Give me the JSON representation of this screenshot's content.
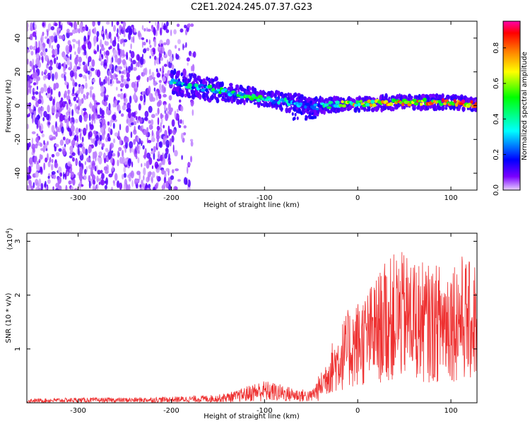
{
  "title": "C2E1.2024.245.07.37.G23",
  "chart_data": [
    {
      "type": "heatmap",
      "xlabel": "Height of straight line (km)",
      "ylabel": "Frequency (Hz)",
      "xlim": [
        -355,
        128
      ],
      "ylim": [
        -50,
        50
      ],
      "xticks": [
        -300,
        -200,
        -100,
        0,
        100
      ],
      "yticks": [
        -40,
        -20,
        0,
        20,
        40
      ],
      "colorbar": {
        "label": "Normalized spectral amplitude",
        "range": [
          0,
          0.95
        ],
        "ticks": [
          0.0,
          0.2,
          0.4,
          0.6,
          0.8
        ],
        "colormap": [
          "#e8d2ff",
          "#7a00ff",
          "#0000ff",
          "#00ffff",
          "#00ff00",
          "#ffff00",
          "#ff8000",
          "#ff0000",
          "#ff00aa"
        ]
      },
      "ridge": {
        "description_points_x": [
          -200,
          -150,
          -100,
          -60,
          -50,
          -20,
          0,
          50,
          100,
          128
        ],
        "frequency_y": [
          14,
          9,
          4,
          1,
          -1,
          1,
          1,
          2,
          2,
          1
        ],
        "amplitude": [
          0.35,
          0.4,
          0.45,
          0.3,
          0.25,
          0.5,
          0.6,
          0.65,
          0.75,
          0.85
        ]
      },
      "noise_region_x": [
        -355,
        -175
      ]
    },
    {
      "type": "line",
      "xlabel": "Height of straight line (km)",
      "ylabel": "SNR (10 * v/v)",
      "ymultiplier": "(x10",
      "ymultiplier_exp": "4",
      "xlim": [
        -355,
        128
      ],
      "ylim": [
        0,
        3.15
      ],
      "xticks": [
        -300,
        -200,
        -100,
        0,
        100
      ],
      "yticks": [
        1,
        2,
        3
      ],
      "color": "#ee3030",
      "series": [
        {
          "x": [
            -355,
            -300,
            -250,
            -200,
            -150,
            -130,
            -110,
            -100,
            -90,
            -70,
            -50,
            -40,
            -30,
            -20,
            -10,
            0,
            10,
            20,
            30,
            40,
            50,
            60,
            70,
            80,
            90,
            100,
            110,
            120,
            128
          ],
          "y": [
            0.04,
            0.05,
            0.05,
            0.06,
            0.08,
            0.12,
            0.2,
            0.22,
            0.2,
            0.15,
            0.12,
            0.3,
            0.6,
            0.8,
            1.0,
            1.1,
            1.2,
            1.35,
            1.5,
            1.6,
            1.6,
            1.55,
            1.5,
            1.45,
            1.5,
            1.55,
            1.6,
            1.5,
            1.55
          ]
        }
      ]
    }
  ]
}
